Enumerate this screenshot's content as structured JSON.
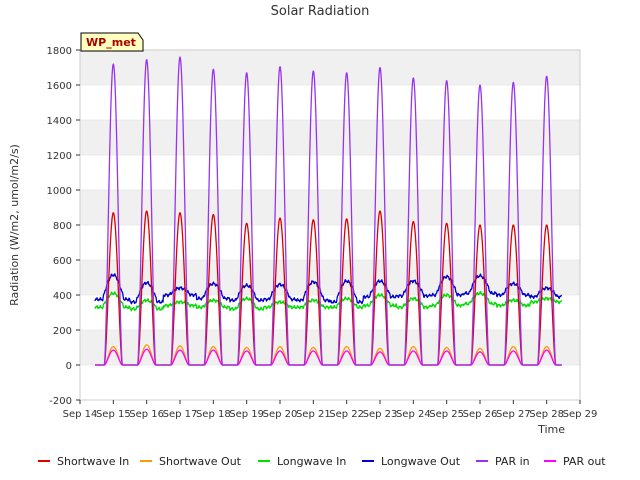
{
  "chart_data": {
    "type": "line",
    "title": "Solar Radiation",
    "xlabel": "Time",
    "ylabel": "Radiation (W/m2, umol/m2/s)",
    "station_label": "WP_met",
    "ylim": [
      -200,
      1800
    ],
    "yticks": [
      -200,
      0,
      200,
      400,
      600,
      800,
      1000,
      1200,
      1400,
      1600,
      1800
    ],
    "xlim": [
      14,
      29
    ],
    "xticks": [
      {
        "day": 14,
        "label": "Sep 14"
      },
      {
        "day": 15,
        "label": "Sep 15"
      },
      {
        "day": 16,
        "label": "Sep 16"
      },
      {
        "day": 17,
        "label": "Sep 17"
      },
      {
        "day": 18,
        "label": "Sep 18"
      },
      {
        "day": 19,
        "label": "Sep 19"
      },
      {
        "day": 20,
        "label": "Sep 20"
      },
      {
        "day": 21,
        "label": "Sep 21"
      },
      {
        "day": 22,
        "label": "Sep 22"
      },
      {
        "day": 23,
        "label": "Sep 23"
      },
      {
        "day": 24,
        "label": "Sep 24"
      },
      {
        "day": 25,
        "label": "Sep 25"
      },
      {
        "day": 26,
        "label": "Sep 26"
      },
      {
        "day": 27,
        "label": "Sep 27"
      },
      {
        "day": 28,
        "label": "Sep 28"
      },
      {
        "day": 29,
        "label": "Sep 29"
      }
    ],
    "grid": "horizontal bands",
    "legend_position": "bottom",
    "days": [
      15,
      16,
      17,
      18,
      19,
      20,
      21,
      22,
      23,
      24,
      25,
      26,
      27,
      28
    ],
    "series": [
      {
        "name": "Shortwave In",
        "color": "#dd0000",
        "kind": "diurnal",
        "noon_values": [
          870,
          880,
          870,
          860,
          810,
          840,
          830,
          835,
          880,
          820,
          810,
          800,
          800,
          800
        ]
      },
      {
        "name": "Shortwave Out",
        "color": "#ff9900",
        "kind": "diurnal",
        "noon_values": [
          105,
          115,
          110,
          105,
          100,
          105,
          100,
          105,
          95,
          105,
          100,
          95,
          105,
          105
        ]
      },
      {
        "name": "Longwave In",
        "color": "#00dd00",
        "kind": "continuous",
        "noon_values": [
          410,
          370,
          360,
          370,
          380,
          360,
          370,
          380,
          400,
          380,
          400,
          410,
          370,
          380
        ],
        "night_values": [
          330,
          320,
          340,
          330,
          320,
          330,
          330,
          330,
          340,
          330,
          340,
          350,
          340,
          360
        ]
      },
      {
        "name": "Longwave Out",
        "color": "#0000cc",
        "kind": "continuous",
        "noon_values": [
          515,
          470,
          440,
          465,
          455,
          460,
          475,
          480,
          480,
          480,
          505,
          510,
          465,
          440
        ],
        "night_values": [
          375,
          360,
          400,
          380,
          370,
          375,
          370,
          360,
          390,
          395,
          400,
          410,
          400,
          390
        ]
      },
      {
        "name": "PAR in",
        "color": "#9933ee",
        "kind": "diurnal",
        "noon_values": [
          1720,
          1745,
          1760,
          1690,
          1670,
          1705,
          1680,
          1670,
          1700,
          1640,
          1625,
          1600,
          1615,
          1650
        ]
      },
      {
        "name": "PAR out",
        "color": "#ff00ff",
        "kind": "diurnal",
        "noon_values": [
          85,
          90,
          85,
          85,
          80,
          80,
          80,
          80,
          75,
          80,
          80,
          75,
          80,
          85
        ]
      }
    ]
  }
}
